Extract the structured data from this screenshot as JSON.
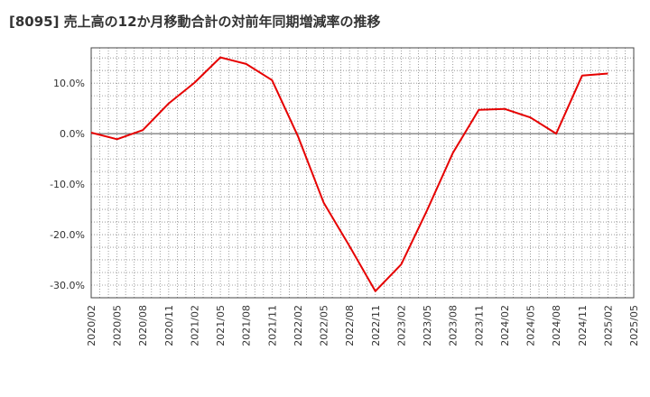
{
  "chart_data": {
    "type": "line",
    "title": "[8095]  売上高の12か月移動合計の対前年同期増減率の推移",
    "xlabel": "",
    "ylabel": "",
    "ylim": [
      -32.5,
      17
    ],
    "yticks": [
      10,
      0,
      -10,
      -20,
      -30
    ],
    "ytick_labels": [
      "10.0%",
      "0.0%",
      "-10.0%",
      "-20.0%",
      "-30.0%"
    ],
    "x_tick_labels": [
      "2020/02",
      "2020/05",
      "2020/08",
      "2020/11",
      "2021/02",
      "2021/05",
      "2021/08",
      "2021/11",
      "2022/02",
      "2022/05",
      "2022/08",
      "2022/11",
      "2023/02",
      "2023/05",
      "2023/08",
      "2023/11",
      "2024/02",
      "2024/05",
      "2024/08",
      "2024/11",
      "2025/02",
      "2025/05"
    ],
    "grid": true,
    "series": [
      {
        "name": "増減率",
        "color": "#e60000",
        "x": [
          "2020/02",
          "2020/05",
          "2020/08",
          "2020/11",
          "2021/02",
          "2021/05",
          "2021/08",
          "2021/11",
          "2022/02",
          "2022/05",
          "2022/08",
          "2022/11",
          "2023/02",
          "2023/05",
          "2023/08",
          "2023/11",
          "2024/02",
          "2024/05",
          "2024/08",
          "2024/11",
          "2025/02"
        ],
        "values": [
          0.2,
          -1.1,
          0.7,
          6.0,
          10.1,
          15.1,
          13.8,
          10.6,
          -0.5,
          -13.7,
          -22.3,
          -31.2,
          -25.9,
          -15.2,
          -3.8,
          4.7,
          4.9,
          3.2,
          0.0,
          11.5,
          11.9
        ]
      }
    ]
  }
}
